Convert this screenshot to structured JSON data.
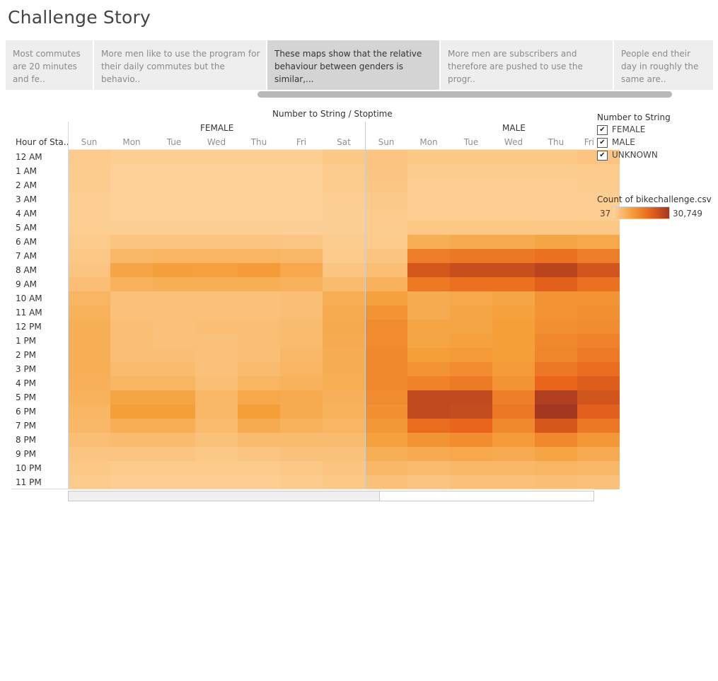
{
  "story": {
    "title": "Challenge Story",
    "points": [
      "Most commutes are 20 minutes and fe..",
      "More men like to use the program for their daily commutes but the behavio..",
      "These maps show that the relative behaviour between genders is similar,...",
      "More men are subscribers and therefore are pushed to use the progr..",
      "People end their day in roughly the same are.."
    ],
    "active_index": 2
  },
  "viz": {
    "title": "Number to String / Stoptime",
    "row_header": "Hour of Sta..",
    "panes": [
      "FEMALE",
      "MALE"
    ],
    "days": [
      "Sun",
      "Mon",
      "Tue",
      "Wed",
      "Thu",
      "Fri",
      "Sat"
    ],
    "visible_male_days": [
      "Sun",
      "Mon",
      "Tue",
      "Wed",
      "Thu",
      "Fri"
    ],
    "hours": [
      "12 AM",
      "1 AM",
      "2 AM",
      "3 AM",
      "4 AM",
      "5 AM",
      "6 AM",
      "7 AM",
      "8 AM",
      "9 AM",
      "10 AM",
      "11 AM",
      "12 PM",
      "1 PM",
      "2 PM",
      "3 PM",
      "4 PM",
      "5 PM",
      "6 PM",
      "7 PM",
      "8 PM",
      "9 PM",
      "10 PM",
      "11 PM"
    ],
    "heat_levels": {
      "note_scale": "0=lightest, 1=darkest relative intensity",
      "female": [
        [
          0.06,
          0.04,
          0.04,
          0.04,
          0.04,
          0.04,
          0.08
        ],
        [
          0.05,
          0.02,
          0.02,
          0.02,
          0.02,
          0.02,
          0.05
        ],
        [
          0.05,
          0.02,
          0.02,
          0.02,
          0.02,
          0.02,
          0.05
        ],
        [
          0.04,
          0.02,
          0.02,
          0.02,
          0.02,
          0.02,
          0.04
        ],
        [
          0.04,
          0.02,
          0.02,
          0.02,
          0.02,
          0.02,
          0.03
        ],
        [
          0.04,
          0.03,
          0.03,
          0.03,
          0.03,
          0.03,
          0.03
        ],
        [
          0.06,
          0.1,
          0.1,
          0.1,
          0.1,
          0.09,
          0.05
        ],
        [
          0.08,
          0.18,
          0.2,
          0.2,
          0.2,
          0.18,
          0.06
        ],
        [
          0.1,
          0.3,
          0.33,
          0.32,
          0.36,
          0.28,
          0.1
        ],
        [
          0.14,
          0.22,
          0.24,
          0.24,
          0.24,
          0.22,
          0.16
        ],
        [
          0.2,
          0.12,
          0.12,
          0.12,
          0.12,
          0.14,
          0.24
        ],
        [
          0.22,
          0.12,
          0.12,
          0.12,
          0.12,
          0.14,
          0.26
        ],
        [
          0.24,
          0.14,
          0.12,
          0.14,
          0.14,
          0.16,
          0.27
        ],
        [
          0.24,
          0.14,
          0.12,
          0.12,
          0.14,
          0.16,
          0.26
        ],
        [
          0.24,
          0.14,
          0.14,
          0.12,
          0.14,
          0.18,
          0.25
        ],
        [
          0.24,
          0.16,
          0.16,
          0.12,
          0.16,
          0.2,
          0.25
        ],
        [
          0.23,
          0.2,
          0.2,
          0.14,
          0.2,
          0.22,
          0.24
        ],
        [
          0.22,
          0.3,
          0.3,
          0.18,
          0.28,
          0.26,
          0.23
        ],
        [
          0.2,
          0.34,
          0.34,
          0.18,
          0.34,
          0.26,
          0.22
        ],
        [
          0.18,
          0.24,
          0.24,
          0.16,
          0.26,
          0.22,
          0.2
        ],
        [
          0.14,
          0.16,
          0.16,
          0.12,
          0.16,
          0.16,
          0.16
        ],
        [
          0.1,
          0.1,
          0.1,
          0.08,
          0.1,
          0.12,
          0.12
        ],
        [
          0.08,
          0.06,
          0.06,
          0.06,
          0.06,
          0.08,
          0.1
        ],
        [
          0.06,
          0.04,
          0.04,
          0.04,
          0.04,
          0.06,
          0.08
        ]
      ],
      "male": [
        [
          0.1,
          0.08,
          0.08,
          0.08,
          0.08,
          0.1
        ],
        [
          0.1,
          0.05,
          0.05,
          0.05,
          0.05,
          0.06
        ],
        [
          0.09,
          0.04,
          0.04,
          0.04,
          0.04,
          0.05
        ],
        [
          0.07,
          0.04,
          0.04,
          0.04,
          0.04,
          0.04
        ],
        [
          0.06,
          0.04,
          0.04,
          0.04,
          0.04,
          0.04
        ],
        [
          0.05,
          0.08,
          0.08,
          0.08,
          0.08,
          0.08
        ],
        [
          0.06,
          0.24,
          0.26,
          0.26,
          0.3,
          0.28
        ],
        [
          0.1,
          0.52,
          0.56,
          0.56,
          0.6,
          0.52
        ],
        [
          0.14,
          0.76,
          0.82,
          0.82,
          0.9,
          0.78
        ],
        [
          0.22,
          0.55,
          0.6,
          0.6,
          0.7,
          0.6
        ],
        [
          0.32,
          0.26,
          0.28,
          0.3,
          0.4,
          0.4
        ],
        [
          0.4,
          0.26,
          0.3,
          0.32,
          0.4,
          0.42
        ],
        [
          0.45,
          0.3,
          0.3,
          0.34,
          0.42,
          0.44
        ],
        [
          0.45,
          0.3,
          0.32,
          0.34,
          0.46,
          0.5
        ],
        [
          0.46,
          0.34,
          0.36,
          0.34,
          0.48,
          0.54
        ],
        [
          0.46,
          0.4,
          0.44,
          0.36,
          0.56,
          0.62
        ],
        [
          0.46,
          0.5,
          0.54,
          0.4,
          0.66,
          0.72
        ],
        [
          0.45,
          0.86,
          0.86,
          0.52,
          0.94,
          0.78
        ],
        [
          0.42,
          0.86,
          0.84,
          0.56,
          1.0,
          0.7
        ],
        [
          0.38,
          0.62,
          0.66,
          0.46,
          0.76,
          0.56
        ],
        [
          0.32,
          0.4,
          0.44,
          0.36,
          0.46,
          0.38
        ],
        [
          0.24,
          0.26,
          0.28,
          0.26,
          0.3,
          0.26
        ],
        [
          0.18,
          0.16,
          0.18,
          0.18,
          0.2,
          0.18
        ],
        [
          0.12,
          0.1,
          0.12,
          0.12,
          0.14,
          0.12
        ]
      ]
    }
  },
  "legend": {
    "filter_title": "Number to String",
    "filter_items": [
      {
        "label": "FEMALE",
        "checked": true
      },
      {
        "label": "MALE",
        "checked": true
      },
      {
        "label": "UNKNOWN",
        "checked": true
      }
    ],
    "color_title": "Count of bikechallenge.csv",
    "color_min": "37",
    "color_max": "30,749",
    "ramp_colors": [
      "#fdd49e",
      "#f5a03a",
      "#e8641a",
      "#a3371f"
    ]
  }
}
